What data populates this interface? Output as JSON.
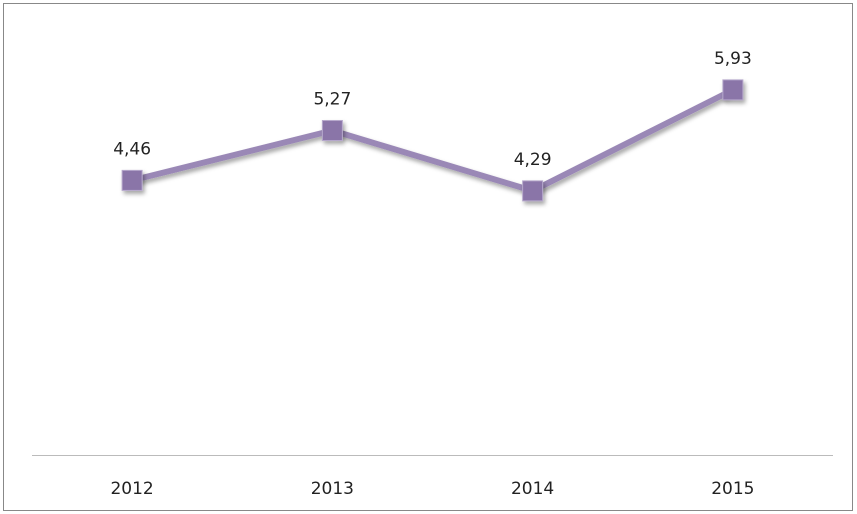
{
  "chart_data": {
    "type": "line",
    "categories": [
      "2012",
      "2013",
      "2014",
      "2015"
    ],
    "values": [
      4.46,
      5.27,
      4.29,
      5.93
    ],
    "value_labels": [
      "4,46",
      "5,27",
      "4,29",
      "5,93"
    ],
    "color": "#9a88b6",
    "marker_color": "#8a75a8",
    "ylim": [
      0,
      7
    ]
  }
}
